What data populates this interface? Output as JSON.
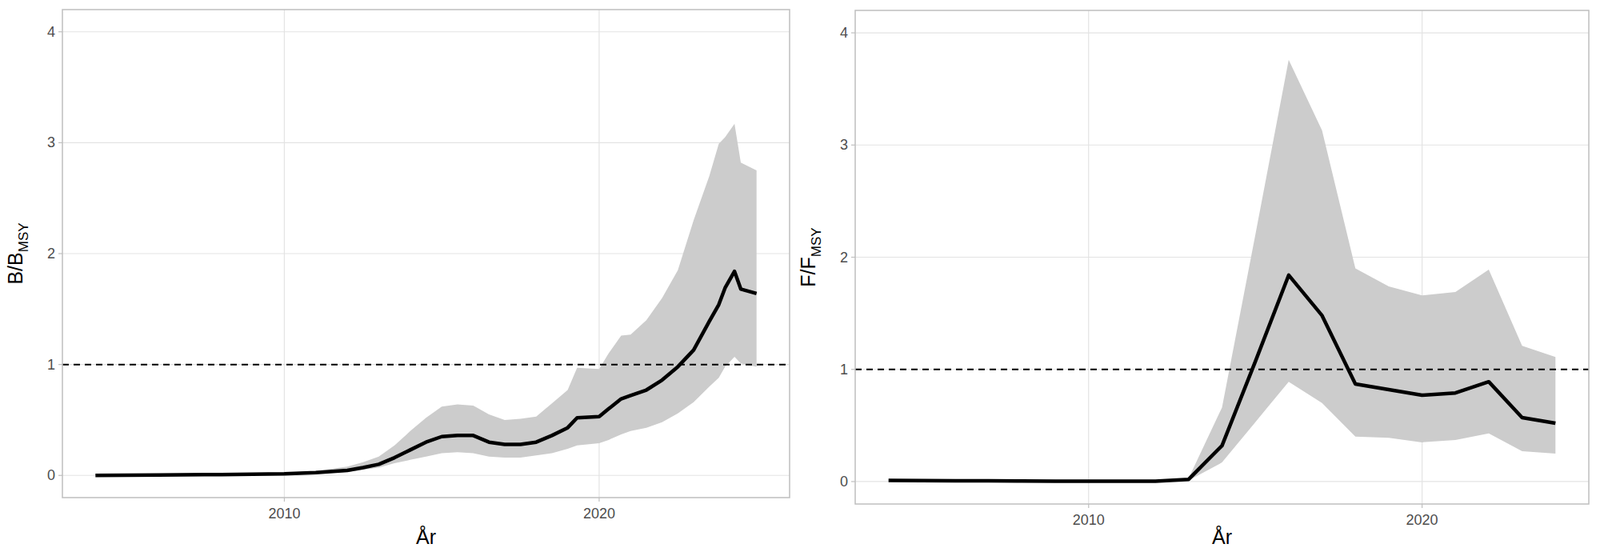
{
  "chart_data": [
    {
      "type": "line",
      "x_label": "År",
      "y_label": {
        "text": "B/B",
        "subscript": "MSY"
      },
      "x": [
        2004,
        2006,
        2008,
        2010,
        2011,
        2012,
        2012.5,
        2013,
        2013.5,
        2014,
        2014.5,
        2015,
        2015.5,
        2016,
        2016.5,
        2017,
        2017.5,
        2018,
        2018.5,
        2019,
        2019.3,
        2020,
        2020.3,
        2020.7,
        2021,
        2021.5,
        2022,
        2022.5,
        2023,
        2023.5,
        2023.8,
        2024,
        2024.3,
        2024.5,
        2025
      ],
      "xlim": [
        2002.95,
        2026.05
      ],
      "xticks": [
        2010,
        2020
      ],
      "ylim": [
        -0.2,
        4.2
      ],
      "yticks": [
        0,
        1,
        2,
        3,
        4
      ],
      "grid": true,
      "hlines": [
        {
          "value": 1,
          "line_style": "dashed",
          "color": "#000000"
        }
      ],
      "series": [
        {
          "type": "band",
          "color": "#cccccc",
          "lower": [
            0,
            0.002,
            0.005,
            0.01,
            0.015,
            0.03,
            0.05,
            0.07,
            0.11,
            0.14,
            0.17,
            0.2,
            0.21,
            0.2,
            0.17,
            0.16,
            0.16,
            0.18,
            0.2,
            0.24,
            0.27,
            0.29,
            0.32,
            0.37,
            0.4,
            0.43,
            0.48,
            0.56,
            0.66,
            0.8,
            0.88,
            0.98,
            1.07,
            1.01,
            0.98
          ],
          "upper": [
            0,
            0.004,
            0.012,
            0.025,
            0.04,
            0.08,
            0.12,
            0.17,
            0.27,
            0.4,
            0.52,
            0.62,
            0.64,
            0.63,
            0.55,
            0.5,
            0.51,
            0.53,
            0.65,
            0.77,
            0.97,
            0.96,
            1.1,
            1.26,
            1.27,
            1.4,
            1.6,
            1.85,
            2.3,
            2.7,
            2.99,
            3.05,
            3.17,
            2.82,
            2.75
          ]
        },
        {
          "type": "line",
          "color": "#000000",
          "line_style": "solid",
          "values": [
            0,
            0.003,
            0.008,
            0.015,
            0.025,
            0.045,
            0.07,
            0.1,
            0.16,
            0.23,
            0.3,
            0.35,
            0.36,
            0.36,
            0.3,
            0.28,
            0.28,
            0.3,
            0.36,
            0.43,
            0.52,
            0.53,
            0.6,
            0.69,
            0.72,
            0.77,
            0.86,
            0.98,
            1.13,
            1.39,
            1.54,
            1.69,
            1.84,
            1.68,
            1.64
          ]
        }
      ]
    },
    {
      "type": "line",
      "x_label": "År",
      "y_label": {
        "text": "F/F",
        "subscript": "MSY"
      },
      "x": [
        2004,
        2005,
        2006,
        2007,
        2008,
        2009,
        2010,
        2011,
        2012,
        2013,
        2014,
        2015,
        2016,
        2017,
        2018,
        2019,
        2020,
        2021,
        2022,
        2023,
        2024
      ],
      "xlim": [
        2003,
        2025
      ],
      "xticks": [
        2010,
        2020
      ],
      "ylim": [
        -0.2,
        4.2
      ],
      "yticks": [
        0,
        1,
        2,
        3,
        4
      ],
      "grid": true,
      "hlines": [
        {
          "value": 1,
          "line_style": "dashed",
          "color": "#000000"
        }
      ],
      "series": [
        {
          "type": "band",
          "color": "#cccccc",
          "lower": [
            0.008,
            0.006,
            0.005,
            0.004,
            0.003,
            0.003,
            0.002,
            0.002,
            0.002,
            0.01,
            0.17,
            0.53,
            0.89,
            0.7,
            0.4,
            0.39,
            0.35,
            0.37,
            0.43,
            0.27,
            0.25
          ],
          "upper": [
            0.012,
            0.01,
            0.009,
            0.008,
            0.007,
            0.006,
            0.005,
            0.004,
            0.004,
            0.03,
            0.66,
            2.2,
            3.76,
            3.13,
            1.9,
            1.74,
            1.66,
            1.69,
            1.89,
            1.21,
            1.11
          ]
        },
        {
          "type": "line",
          "color": "#000000",
          "line_style": "solid",
          "values": [
            0.01,
            0.008,
            0.007,
            0.006,
            0.005,
            0.004,
            0.003,
            0.003,
            0.003,
            0.02,
            0.32,
            1.07,
            1.84,
            1.48,
            0.87,
            0.82,
            0.77,
            0.79,
            0.89,
            0.57,
            0.52
          ]
        }
      ]
    }
  ]
}
